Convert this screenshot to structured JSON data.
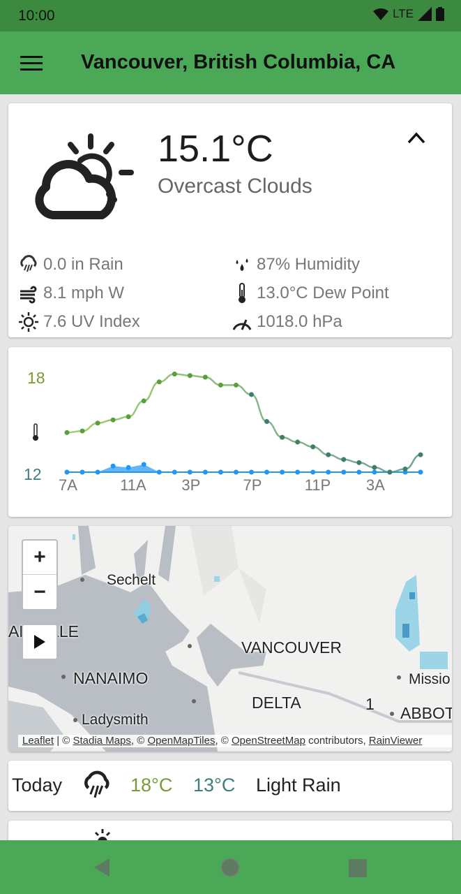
{
  "status_bar": {
    "time": "10:00",
    "network": "LTE"
  },
  "app_bar": {
    "title": "Vancouver, British Columbia, CA",
    "menu_icon": "hamburger-menu-icon"
  },
  "current": {
    "temperature": "15.1°C",
    "condition": "Overcast Clouds",
    "icon": "cloud-sun-icon",
    "stats": [
      {
        "icon": "rain-icon",
        "text": "0.0 in Rain"
      },
      {
        "icon": "humidity-icon",
        "text": "87% Humidity"
      },
      {
        "icon": "wind-icon",
        "text": "8.1 mph W"
      },
      {
        "icon": "thermometer-icon",
        "text": "13.0°C Dew Point"
      },
      {
        "icon": "sun-icon",
        "text": "7.6 UV Index"
      },
      {
        "icon": "gauge-icon",
        "text": "1018.0 hPa"
      }
    ]
  },
  "chart_data": {
    "type": "line",
    "x_tick_labels": [
      "7A",
      "11A",
      "3P",
      "7P",
      "11P",
      "3A"
    ],
    "y_tick_labels": [
      "18",
      "12"
    ],
    "ylim": [
      12,
      18
    ],
    "x_hours": [
      "7A",
      "8A",
      "9A",
      "10A",
      "11A",
      "12P",
      "1P",
      "2P",
      "3P",
      "4P",
      "5P",
      "6P",
      "7P",
      "8P",
      "9P",
      "10P",
      "11P",
      "12A",
      "1A",
      "2A",
      "3A",
      "4A",
      "5A",
      "6A"
    ],
    "series": [
      {
        "values": [
          14.5,
          14.6,
          15.1,
          15.3,
          15.5,
          16.5,
          17.7,
          18.2,
          18.1,
          18.0,
          17.5,
          17.5,
          16.9,
          15.2,
          14.2,
          13.9,
          13.6,
          13.1,
          12.8,
          12.6,
          12.3,
          12.0,
          12.2,
          13.1
        ],
        "color": "#6aa84f"
      },
      {
        "values": [
          0,
          0,
          0,
          0.4,
          0.3,
          0.5,
          0,
          0,
          0,
          0,
          0,
          0,
          0,
          0,
          0,
          0,
          0,
          0,
          0,
          0,
          0,
          0,
          0,
          0
        ],
        "color": "#2196f3"
      }
    ],
    "high_color": "#7a9a3a",
    "low_color": "#3f7f7a"
  },
  "map": {
    "zoom_in": "+",
    "zoom_out": "−",
    "labels": [
      "Sechelt",
      "VANCOUVER",
      "NANAIMO",
      "DELTA",
      "Ladysmith",
      "Missio",
      "ABBOT",
      "1",
      "AR  VILLE"
    ],
    "attribution": {
      "leaflet": "Leaflet",
      "sep": " | © ",
      "stadia": "Stadia Maps",
      "c1": ", © ",
      "omt": "OpenMapTiles",
      "c2": ", © ",
      "osm": "OpenStreetMap",
      "contrib": " contributors, ",
      "rv": "RainViewer"
    }
  },
  "forecast": [
    {
      "day": "Today",
      "icon": "rain-icon",
      "high": "18°C",
      "low": "13°C",
      "condition": "Light Rain"
    }
  ]
}
